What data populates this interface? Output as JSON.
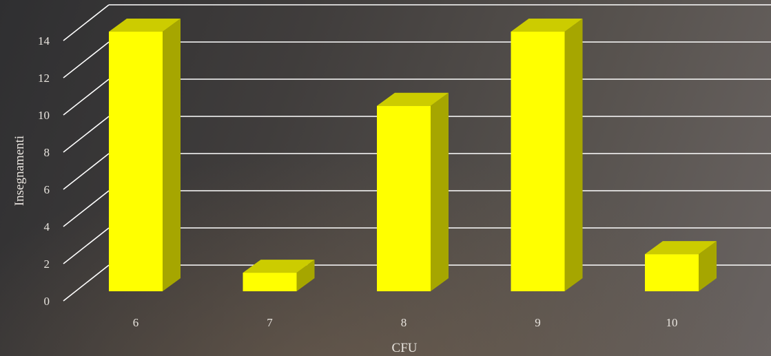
{
  "chart_data": {
    "type": "bar",
    "categories": [
      "6",
      "7",
      "8",
      "9",
      "10"
    ],
    "values": [
      14,
      1,
      10,
      14,
      2
    ],
    "xlabel": "CFU",
    "ylabel": "Insegnamenti",
    "ylim": [
      0,
      14
    ],
    "yticks": [
      "0",
      "2",
      "4",
      "6",
      "8",
      "10",
      "12",
      "14"
    ],
    "grid": true,
    "style": "3d-column",
    "colors": {
      "bar_front": "#ffff00",
      "bar_top": "#cccc00",
      "bar_side": "#a6a600",
      "grid": "#ffffff",
      "text": "#e8e4de"
    }
  }
}
